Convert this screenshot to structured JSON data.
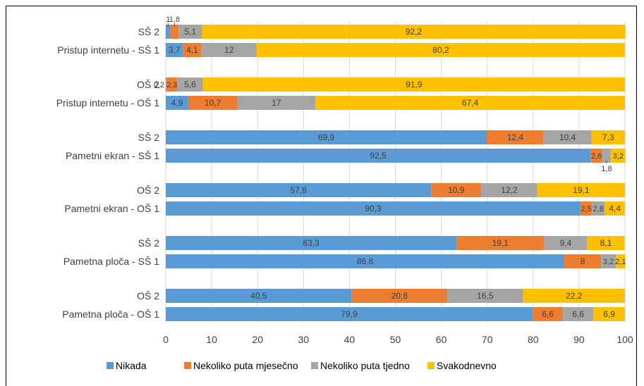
{
  "chart_data": {
    "type": "bar",
    "orientation": "horizontal",
    "stacked": true,
    "title": "",
    "xlabel": "",
    "ylabel": "",
    "xlim": [
      0,
      100
    ],
    "x_ticks": [
      "0",
      "10",
      "20",
      "30",
      "40",
      "50",
      "60",
      "70",
      "80",
      "90",
      "100"
    ],
    "grid": "vertical",
    "legend_position": "bottom",
    "categories": [
      "SŠ 2",
      "Pristup internetu - SŠ 1",
      "OŠ 2",
      "Pristup internetu - OŠ 1",
      "SŠ 2",
      "Pametni ekran - SŠ 1",
      "OŠ 2",
      "Pametni ekran - OŠ 1",
      "SŠ 2",
      "Pametna ploča - SŠ 1",
      "OŠ 2",
      "Pametna ploča - OŠ 1"
    ],
    "series": [
      {
        "name": "Nikada",
        "color": "#5B9BD5",
        "values": [
          1,
          3.7,
          0.2,
          4.9,
          69.9,
          92.5,
          57.8,
          90.3,
          63.3,
          86.8,
          40.5,
          79.9
        ]
      },
      {
        "name": "Nekoliko puta mjesečno",
        "color": "#ED7D31",
        "values": [
          1.8,
          4.1,
          2.3,
          10.7,
          12.4,
          2.6,
          10.9,
          2.5,
          19.1,
          8,
          20.8,
          6.6
        ]
      },
      {
        "name": "Nekoliko puta tjedno",
        "color": "#A5A5A5",
        "values": [
          5.1,
          12,
          5.6,
          17,
          10.4,
          1.8,
          12.2,
          2.8,
          9.4,
          3.2,
          16.5,
          6.6
        ]
      },
      {
        "name": "Svakodnevno",
        "color": "#FFC000",
        "values": [
          92.2,
          80.2,
          91.9,
          67.4,
          7.3,
          3.2,
          19.1,
          4.4,
          8.1,
          2.1,
          22.2,
          6.9
        ]
      }
    ]
  }
}
